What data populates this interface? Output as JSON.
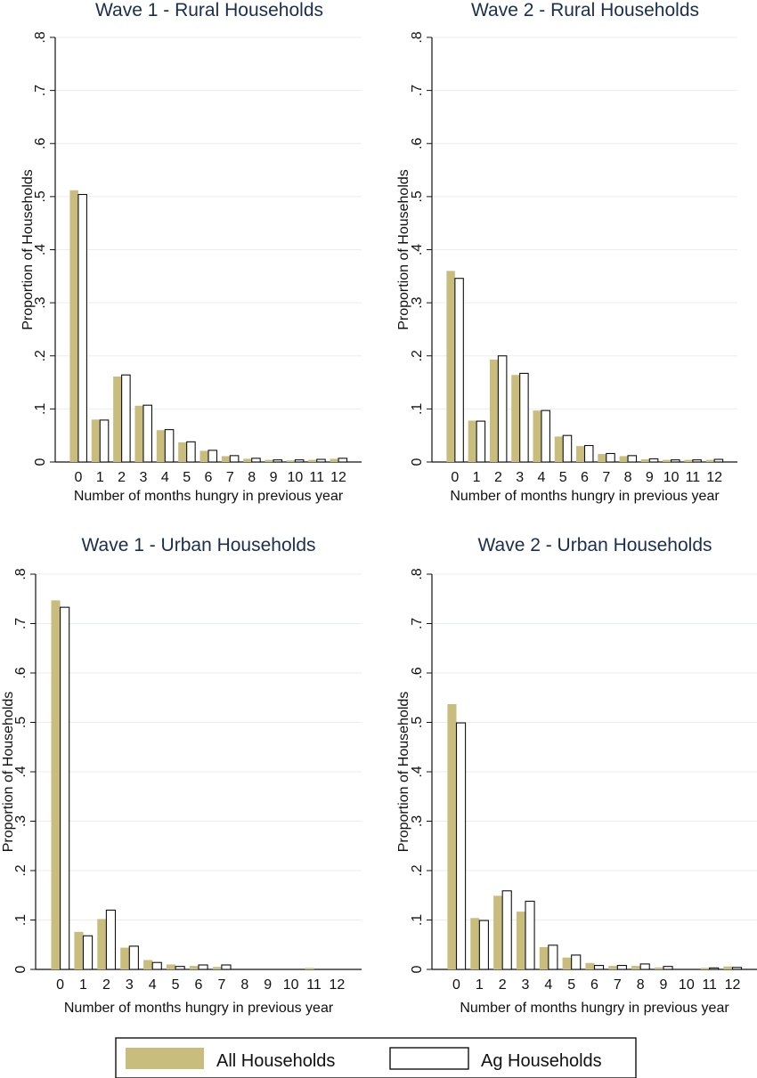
{
  "legend": {
    "position": "bottom",
    "items": [
      {
        "label": "All Households",
        "color": "#c8bd7d"
      },
      {
        "label": "Ag Households",
        "color": "#ffffff"
      }
    ]
  },
  "colors": {
    "all_fill": "#c8bd7d",
    "ag_fill": "#ffffff",
    "ag_stroke": "#111111",
    "title": "#1a2e4f",
    "grid": "#e9eef1"
  },
  "chart_data": [
    {
      "type": "bar",
      "title": "Wave 1 - Rural Households",
      "xlabel": "Number of months hungry in previous year",
      "ylabel": "Proportion of Households",
      "categories": [
        "0",
        "1",
        "2",
        "3",
        "4",
        "5",
        "6",
        "7",
        "8",
        "9",
        "10",
        "11",
        "12"
      ],
      "ylim": [
        0,
        0.8
      ],
      "yticks": [
        0,
        0.1,
        0.2,
        0.3,
        0.4,
        0.5,
        0.6,
        0.7,
        0.8
      ],
      "ytick_labels": [
        "0",
        ".1",
        ".2",
        ".3",
        ".4",
        ".5",
        ".6",
        ".7",
        ".8"
      ],
      "grid": true,
      "series": [
        {
          "name": "All Households",
          "values": [
            0.512,
            0.08,
            0.161,
            0.106,
            0.06,
            0.037,
            0.021,
            0.011,
            0.006,
            0.004,
            0.003,
            0.004,
            0.006
          ]
        },
        {
          "name": "Ag Households",
          "values": [
            0.504,
            0.079,
            0.164,
            0.107,
            0.061,
            0.038,
            0.022,
            0.012,
            0.007,
            0.004,
            0.004,
            0.005,
            0.007
          ]
        }
      ]
    },
    {
      "type": "bar",
      "title": "Wave 2 - Rural Households",
      "xlabel": "Number of months hungry in previous year",
      "ylabel": "Proportion of Households",
      "categories": [
        "0",
        "1",
        "2",
        "3",
        "4",
        "5",
        "6",
        "7",
        "8",
        "9",
        "10",
        "11",
        "12"
      ],
      "ylim": [
        0,
        0.8
      ],
      "yticks": [
        0,
        0.1,
        0.2,
        0.3,
        0.4,
        0.5,
        0.6,
        0.7,
        0.8
      ],
      "ytick_labels": [
        "0",
        ".1",
        ".2",
        ".3",
        ".4",
        ".5",
        ".6",
        ".7",
        ".8"
      ],
      "grid": true,
      "series": [
        {
          "name": "All Households",
          "values": [
            0.36,
            0.078,
            0.193,
            0.164,
            0.097,
            0.048,
            0.03,
            0.015,
            0.011,
            0.005,
            0.004,
            0.004,
            0.004
          ]
        },
        {
          "name": "Ag Households",
          "values": [
            0.346,
            0.077,
            0.2,
            0.167,
            0.097,
            0.05,
            0.031,
            0.016,
            0.012,
            0.006,
            0.004,
            0.004,
            0.005
          ]
        }
      ]
    },
    {
      "type": "bar",
      "title": "Wave 1 - Urban Households",
      "xlabel": "Number of months hungry in previous year",
      "ylabel": "Proportion of Households",
      "categories": [
        "0",
        "1",
        "2",
        "3",
        "4",
        "5",
        "6",
        "7",
        "8",
        "9",
        "10",
        "11",
        "12"
      ],
      "ylim": [
        0,
        0.8
      ],
      "yticks": [
        0,
        0.1,
        0.2,
        0.3,
        0.4,
        0.5,
        0.6,
        0.7,
        0.8
      ],
      "ytick_labels": [
        "0",
        ".1",
        ".2",
        ".3",
        ".4",
        ".5",
        ".6",
        ".7",
        ".8"
      ],
      "grid": true,
      "series": [
        {
          "name": "All Households",
          "values": [
            0.747,
            0.076,
            0.102,
            0.044,
            0.019,
            0.01,
            0.007,
            0.005,
            0.0,
            0.0,
            0.0,
            0.003,
            0.0
          ]
        },
        {
          "name": "Ag Households",
          "values": [
            0.733,
            0.068,
            0.12,
            0.047,
            0.014,
            0.006,
            0.009,
            0.009,
            0.0,
            0.0,
            0.0,
            0.0,
            0.0
          ]
        }
      ]
    },
    {
      "type": "bar",
      "title": "Wave 2 - Urban Households",
      "xlabel": "Number of months hungry in previous year",
      "ylabel": "Proportion of Households",
      "categories": [
        "0",
        "1",
        "2",
        "3",
        "4",
        "5",
        "6",
        "7",
        "8",
        "9",
        "10",
        "11",
        "12"
      ],
      "ylim": [
        0,
        0.8
      ],
      "yticks": [
        0,
        0.1,
        0.2,
        0.3,
        0.4,
        0.5,
        0.6,
        0.7,
        0.8
      ],
      "ytick_labels": [
        "0",
        ".1",
        ".2",
        ".3",
        ".4",
        ".5",
        ".6",
        ".7",
        ".8"
      ],
      "grid": true,
      "series": [
        {
          "name": "All Households",
          "values": [
            0.537,
            0.104,
            0.149,
            0.117,
            0.045,
            0.024,
            0.013,
            0.007,
            0.007,
            0.004,
            0.0,
            0.003,
            0.006
          ]
        },
        {
          "name": "Ag Households",
          "values": [
            0.499,
            0.099,
            0.159,
            0.138,
            0.049,
            0.029,
            0.008,
            0.008,
            0.011,
            0.006,
            0.0,
            0.003,
            0.004
          ]
        }
      ]
    }
  ]
}
